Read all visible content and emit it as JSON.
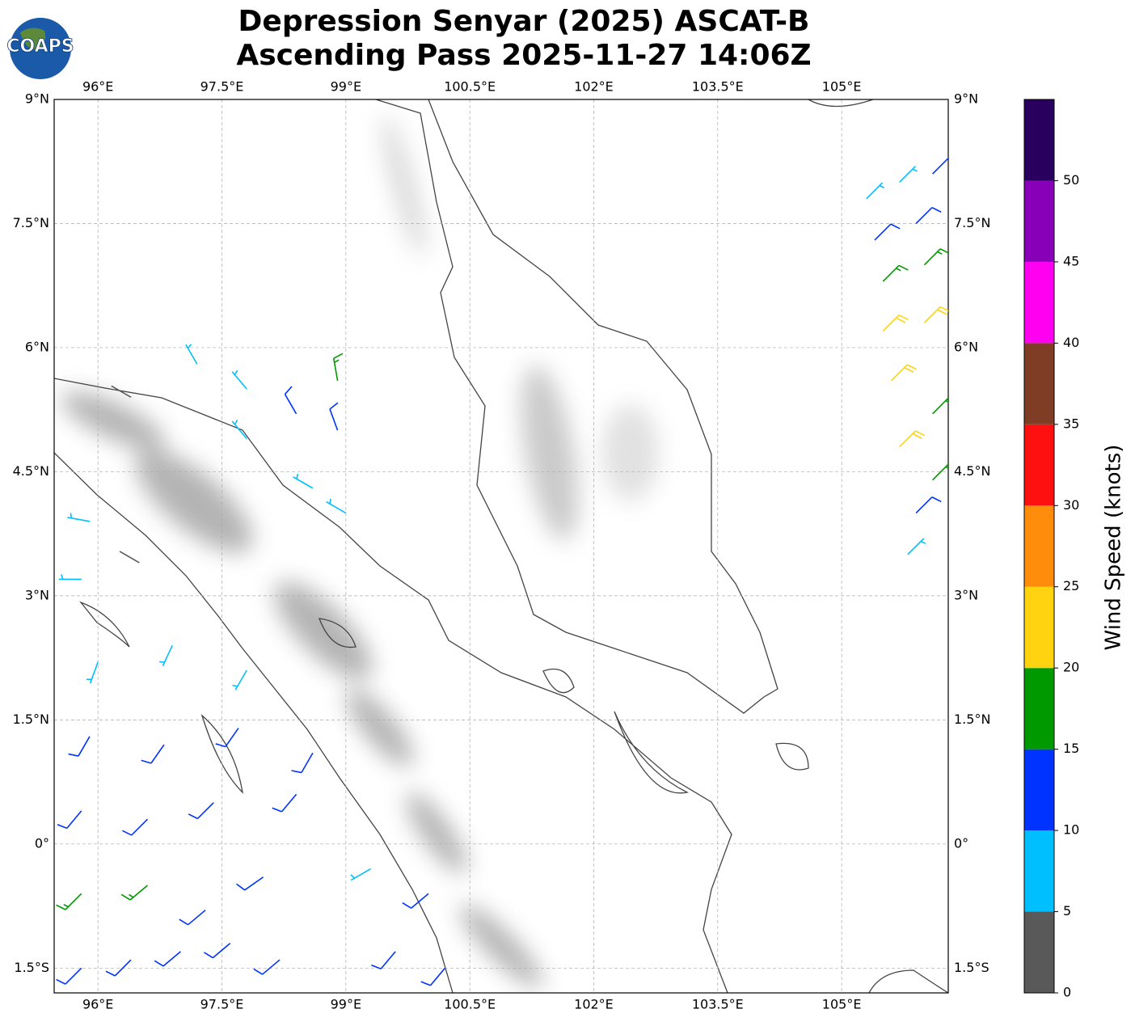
{
  "chart_data": {
    "type": "wind-barb-map",
    "title": "Depression Senyar (2025) ASCAT-B",
    "subtitle": "Ascending Pass 2025-11-27 14:06Z",
    "logo": "COAPS",
    "xlim": [
      95.47,
      106.29
    ],
    "ylim": [
      -1.8,
      9
    ],
    "xticks": [
      {
        "value": 96,
        "label": "96°E"
      },
      {
        "value": 97.5,
        "label": "97.5°E"
      },
      {
        "value": 99,
        "label": "99°E"
      },
      {
        "value": 100.5,
        "label": "100.5°E"
      },
      {
        "value": 102,
        "label": "102°E"
      },
      {
        "value": 103.5,
        "label": "103.5°E"
      },
      {
        "value": 105,
        "label": "105°E"
      }
    ],
    "yticks": [
      {
        "value": 9,
        "label": "9°N"
      },
      {
        "value": 7.5,
        "label": "7.5°N"
      },
      {
        "value": 6,
        "label": "6°N"
      },
      {
        "value": 4.5,
        "label": "4.5°N"
      },
      {
        "value": 3,
        "label": "3°N"
      },
      {
        "value": 1.5,
        "label": "1.5°N"
      },
      {
        "value": 0,
        "label": "0°"
      },
      {
        "value": -1.5,
        "label": "1.5°S"
      }
    ],
    "grid": true,
    "colorbar": {
      "label": "Wind Speed (knots)",
      "bounds": [
        0,
        5,
        10,
        15,
        20,
        25,
        30,
        35,
        40,
        45,
        50,
        55
      ],
      "colors": [
        "#595959",
        "#00bfff",
        "#0033ff",
        "#009900",
        "#ffd30f",
        "#ff8c0a",
        "#ff1010",
        "#7f3d26",
        "#ff00f0",
        "#8800b8",
        "#2a005e"
      ],
      "ticks": [
        0,
        5,
        10,
        15,
        20,
        25,
        30,
        35,
        40,
        45,
        50
      ]
    },
    "barbs": [
      [
        95.8,
        -1.5,
        13,
        225
      ],
      [
        96.4,
        -1.4,
        12,
        225
      ],
      [
        97.0,
        -1.3,
        14,
        230
      ],
      [
        97.6,
        -1.2,
        12,
        230
      ],
      [
        98.2,
        -1.4,
        11,
        230
      ],
      [
        99.6,
        -1.3,
        13,
        220
      ],
      [
        100.2,
        -1.5,
        12,
        220
      ],
      [
        95.8,
        -0.6,
        17,
        225
      ],
      [
        96.6,
        -0.5,
        16,
        230
      ],
      [
        97.3,
        -0.8,
        13,
        230
      ],
      [
        98.0,
        -0.4,
        12,
        235
      ],
      [
        99.3,
        -0.3,
        8,
        240
      ],
      [
        100.0,
        -0.6,
        11,
        230
      ],
      [
        95.8,
        0.4,
        12,
        220
      ],
      [
        96.6,
        0.3,
        13,
        225
      ],
      [
        97.4,
        0.5,
        12,
        225
      ],
      [
        98.4,
        0.6,
        11,
        220
      ],
      [
        95.9,
        1.3,
        12,
        210
      ],
      [
        96.8,
        1.2,
        13,
        215
      ],
      [
        97.7,
        1.4,
        12,
        215
      ],
      [
        98.6,
        1.1,
        13,
        210
      ],
      [
        96.0,
        2.2,
        9,
        200
      ],
      [
        96.9,
        2.4,
        8,
        205
      ],
      [
        97.8,
        2.1,
        8,
        210
      ],
      [
        95.8,
        3.2,
        7,
        270
      ],
      [
        96.5,
        3.4,
        4,
        300
      ],
      [
        95.9,
        3.9,
        8,
        280
      ],
      [
        97.2,
        5.8,
        7,
        330
      ],
      [
        97.8,
        5.5,
        8,
        320
      ],
      [
        98.4,
        5.2,
        11,
        330
      ],
      [
        98.9,
        5.0,
        13,
        340
      ],
      [
        98.9,
        5.6,
        17,
        350
      ],
      [
        97.8,
        4.9,
        9,
        320
      ],
      [
        98.6,
        4.3,
        8,
        300
      ],
      [
        99.0,
        4.0,
        9,
        300
      ],
      [
        96.4,
        5.4,
        3,
        300
      ],
      [
        105.3,
        7.8,
        8,
        45
      ],
      [
        105.7,
        8.0,
        7,
        45
      ],
      [
        106.1,
        8.1,
        12,
        45
      ],
      [
        105.4,
        7.3,
        13,
        45
      ],
      [
        105.9,
        7.5,
        12,
        45
      ],
      [
        105.5,
        6.8,
        18,
        45
      ],
      [
        106.0,
        7.0,
        17,
        45
      ],
      [
        105.5,
        6.2,
        22,
        45
      ],
      [
        106.0,
        6.3,
        21,
        45
      ],
      [
        105.6,
        5.6,
        23,
        45
      ],
      [
        106.1,
        5.2,
        18,
        45
      ],
      [
        105.7,
        4.8,
        22,
        45
      ],
      [
        106.1,
        4.4,
        17,
        45
      ],
      [
        105.9,
        4.0,
        12,
        45
      ],
      [
        105.8,
        3.5,
        8,
        45
      ]
    ]
  }
}
